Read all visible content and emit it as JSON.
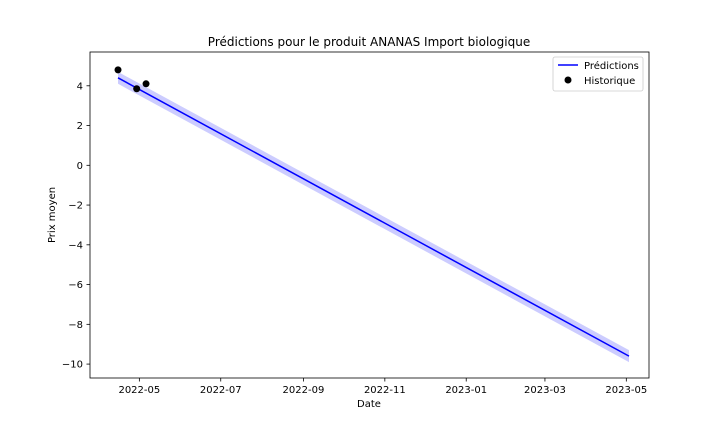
{
  "chart_data": {
    "type": "line",
    "title": "Prédictions pour le produit ANANAS Import biologique",
    "xlabel": "Date",
    "ylabel": "Prix moyen",
    "xlim": [
      "2022-03-25",
      "2023-05-18"
    ],
    "ylim": [
      -10.7,
      5.7
    ],
    "x_ticks": [
      "2022-05",
      "2022-07",
      "2022-09",
      "2022-11",
      "2023-01",
      "2023-03",
      "2023-05"
    ],
    "y_ticks": [
      -10,
      -8,
      -6,
      -4,
      -2,
      0,
      2,
      4
    ],
    "legend_position": "top-right",
    "series": [
      {
        "name": "Prédictions",
        "kind": "line",
        "color": "#0000ff",
        "x": [
          "2022-04-15",
          "2023-05-03"
        ],
        "y": [
          4.4,
          -9.6
        ]
      },
      {
        "name": "Historique",
        "kind": "scatter",
        "color": "#000000",
        "x": [
          "2022-04-15",
          "2022-04-29",
          "2022-05-06"
        ],
        "y": [
          4.8,
          3.85,
          4.1
        ]
      }
    ],
    "confidence_band": {
      "color": "#aaaaff",
      "x": [
        "2022-04-15",
        "2023-05-03"
      ],
      "lower": [
        4.1,
        -9.9
      ],
      "upper": [
        4.7,
        -9.3
      ]
    }
  }
}
